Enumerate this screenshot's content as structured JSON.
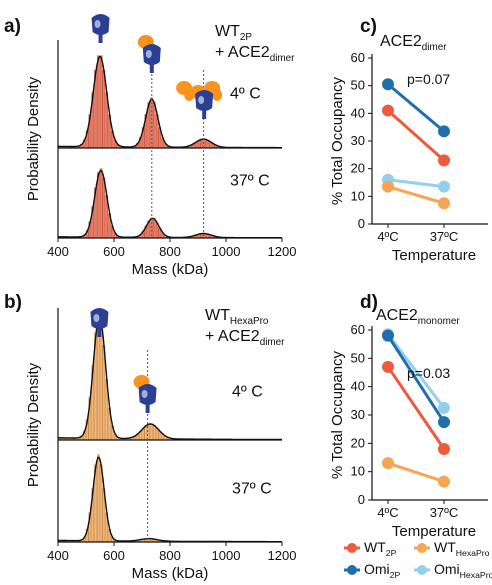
{
  "panel_labels": {
    "a": "a)",
    "b": "b)",
    "c": "c)",
    "d": "d)"
  },
  "chart_data": [
    {
      "id": "a",
      "type": "histogram",
      "title_main": "WT",
      "title_sub": "2P",
      "title_line2_prefix": "+ ACE2",
      "title_line2_sub": "dimer",
      "xlabel": "Mass (kDa)",
      "ylabel": "Probability Density",
      "xlim": [
        400,
        1200
      ],
      "xticks": [
        400,
        600,
        800,
        1000,
        1200
      ],
      "bar_color": "#f07860",
      "stroke_color": "#b04838",
      "dashed_lines_x": [
        735,
        920
      ],
      "panels": [
        {
          "label": "4º C",
          "peaks": [
            {
              "mu": 550,
              "sigma": 24,
              "h": 0.98
            },
            {
              "mu": 735,
              "sigma": 22,
              "h": 0.52
            },
            {
              "mu": 920,
              "sigma": 28,
              "h": 0.09
            }
          ]
        },
        {
          "label": "37º C",
          "peaks": [
            {
              "mu": 553,
              "sigma": 22,
              "h": 0.98
            },
            {
              "mu": 738,
              "sigma": 22,
              "h": 0.28
            },
            {
              "mu": 920,
              "sigma": 28,
              "h": 0.06
            }
          ]
        }
      ]
    },
    {
      "id": "b",
      "type": "histogram",
      "title_main": "WT",
      "title_sub": "HexaPro",
      "title_line2_prefix": "+ ACE2",
      "title_line2_sub": "dimer",
      "xlabel": "Mass (kDa)",
      "ylabel": "Probability Density",
      "xlim": [
        400,
        1200
      ],
      "xticks": [
        400,
        600,
        800,
        1000,
        1200
      ],
      "bar_color": "#f7b372",
      "stroke_color": "#b07a3a",
      "dashed_lines_x": [
        720
      ],
      "panels": [
        {
          "label": "4º C",
          "peaks": [
            {
              "mu": 548,
              "sigma": 22,
              "h": 0.98
            },
            {
              "mu": 730,
              "sigma": 30,
              "h": 0.12
            }
          ]
        },
        {
          "label": "37º C",
          "peaks": [
            {
              "mu": 545,
              "sigma": 20,
              "h": 0.98
            },
            {
              "mu": 725,
              "sigma": 30,
              "h": 0.03
            }
          ]
        }
      ]
    },
    {
      "id": "c",
      "type": "line",
      "title": "ACE2",
      "title_sub": "dimer",
      "xlabel": "Temperature",
      "ylabel": "% Total Occupancy",
      "categories": [
        "4ºC",
        "37ºC"
      ],
      "ylim": [
        0,
        60
      ],
      "yticks": [
        0,
        10,
        20,
        30,
        40,
        50,
        60
      ],
      "annotation": "p=0.07",
      "series": [
        {
          "key": "wt2p",
          "color": "#f05a3c",
          "values": [
            41,
            23
          ]
        },
        {
          "key": "omi2p",
          "color": "#1f6fad",
          "values": [
            50.5,
            33.5
          ]
        },
        {
          "key": "omihexa",
          "color": "#93d0ea",
          "values": [
            16,
            13.5
          ]
        },
        {
          "key": "wthexa",
          "color": "#f6a555",
          "values": [
            13.5,
            7.5
          ]
        }
      ]
    },
    {
      "id": "d",
      "type": "line",
      "title": "ACE2",
      "title_sub": "monomer",
      "xlabel": "Temperature",
      "ylabel": "% Total Occupancy",
      "categories": [
        "4ºC",
        "37ºC"
      ],
      "ylim": [
        0,
        60
      ],
      "yticks": [
        0,
        10,
        20,
        30,
        40,
        50,
        60
      ],
      "annotation": "p=0.03",
      "series": [
        {
          "key": "omihexa",
          "color": "#93d0ea",
          "values": [
            58.5,
            32.5
          ]
        },
        {
          "key": "omi2p",
          "color": "#1f6fad",
          "values": [
            58,
            27.5
          ]
        },
        {
          "key": "wt2p",
          "color": "#f05a3c",
          "values": [
            47,
            18
          ]
        },
        {
          "key": "wthexa",
          "color": "#f6a555",
          "values": [
            13,
            6.5
          ]
        }
      ]
    }
  ],
  "legend": [
    {
      "key": "wt2p",
      "name": "WT",
      "sub": "2P",
      "color": "#f05a3c"
    },
    {
      "key": "wthexa",
      "name": "WT",
      "sub": "HexaPro",
      "color": "#f6a555"
    },
    {
      "key": "omi2p",
      "name": "Omi",
      "sub": "2P",
      "color": "#1f6fad"
    },
    {
      "key": "omihexa",
      "name": "Omi",
      "sub": "HexaPro",
      "color": "#93d0ea"
    }
  ]
}
